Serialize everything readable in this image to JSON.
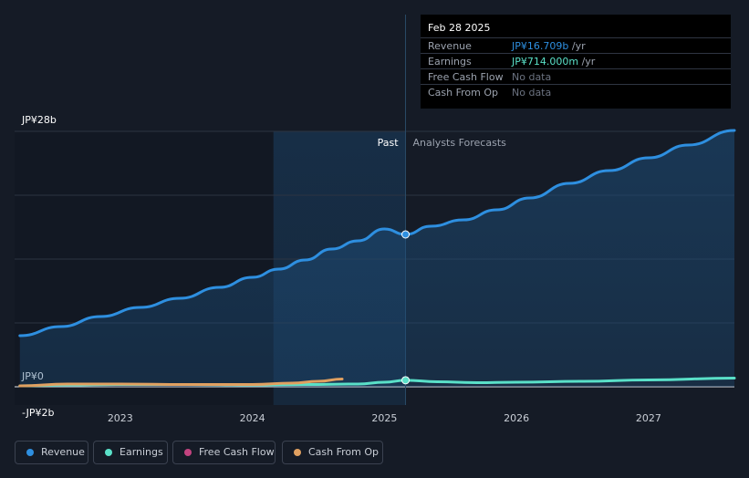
{
  "tooltip": {
    "date": "Feb 28 2025",
    "rows": [
      {
        "label": "Revenue",
        "value": "JP¥16.709b",
        "unit": "/yr",
        "color": "#2e8fe0"
      },
      {
        "label": "Earnings",
        "value": "JP¥714.000m",
        "unit": "/yr",
        "color": "#5ae0c8"
      },
      {
        "label": "Free Cash Flow",
        "value": "No data",
        "unit": "",
        "color": "#6b7280"
      },
      {
        "label": "Cash From Op",
        "value": "No data",
        "unit": "",
        "color": "#6b7280"
      }
    ]
  },
  "section_labels": {
    "past": "Past",
    "forecast": "Analysts Forecasts"
  },
  "legend": [
    {
      "label": "Revenue",
      "color": "#2e8fe0"
    },
    {
      "label": "Earnings",
      "color": "#5ae0c8"
    },
    {
      "label": "Free Cash Flow",
      "color": "#c2437f"
    },
    {
      "label": "Cash From Op",
      "color": "#e0a060"
    }
  ],
  "chart_data": {
    "type": "line",
    "y_unit": "JP¥ billions",
    "ylim": [
      -2,
      28
    ],
    "y_tick_labels": [
      {
        "value": 28,
        "label": "JP¥28b"
      },
      {
        "value": 0,
        "label": "JP¥0"
      },
      {
        "value": -2,
        "label": "-JP¥2b"
      }
    ],
    "xlim": [
      2022.2,
      2027.65
    ],
    "x_ticks": [
      {
        "value": 2023,
        "label": "2023"
      },
      {
        "value": 2024,
        "label": "2024"
      },
      {
        "value": 2025,
        "label": "2025"
      },
      {
        "value": 2026,
        "label": "2026"
      },
      {
        "value": 2027,
        "label": "2027"
      }
    ],
    "grid": true,
    "past_region": [
      2024.16,
      2025.16
    ],
    "forecast_start": 2025.16,
    "highlight_x": 2025.16,
    "series": [
      {
        "name": "Revenue",
        "color": "#2e8fe0",
        "fill": true,
        "x": [
          2022.24,
          2022.55,
          2022.85,
          2023.15,
          2023.45,
          2023.75,
          2024.0,
          2024.2,
          2024.4,
          2024.6,
          2024.8,
          2025.0,
          2025.16,
          2025.35,
          2025.6,
          2025.85,
          2026.1,
          2026.4,
          2026.7,
          2027.0,
          2027.3,
          2027.65
        ],
        "y": [
          5.6,
          6.6,
          7.7,
          8.7,
          9.7,
          10.9,
          12.0,
          12.9,
          13.9,
          15.1,
          16.0,
          17.3,
          16.7,
          17.6,
          18.3,
          19.4,
          20.7,
          22.3,
          23.7,
          25.1,
          26.5,
          28.1
        ]
      },
      {
        "name": "Earnings",
        "color": "#5ae0c8",
        "fill": false,
        "x": [
          2022.24,
          2022.6,
          2023.0,
          2023.5,
          2024.0,
          2024.4,
          2024.8,
          2025.0,
          2025.16,
          2025.4,
          2025.7,
          2026.0,
          2026.5,
          2027.0,
          2027.65
        ],
        "y": [
          0.1,
          0.2,
          0.25,
          0.25,
          0.2,
          0.25,
          0.3,
          0.5,
          0.714,
          0.55,
          0.45,
          0.5,
          0.6,
          0.75,
          0.95
        ]
      },
      {
        "name": "Cash From Op",
        "color": "#e0a060",
        "fill": false,
        "x": [
          2022.24,
          2022.6,
          2023.0,
          2023.5,
          2024.0,
          2024.3,
          2024.5,
          2024.68
        ],
        "y": [
          0.1,
          0.3,
          0.3,
          0.25,
          0.25,
          0.4,
          0.6,
          0.85
        ]
      }
    ]
  }
}
